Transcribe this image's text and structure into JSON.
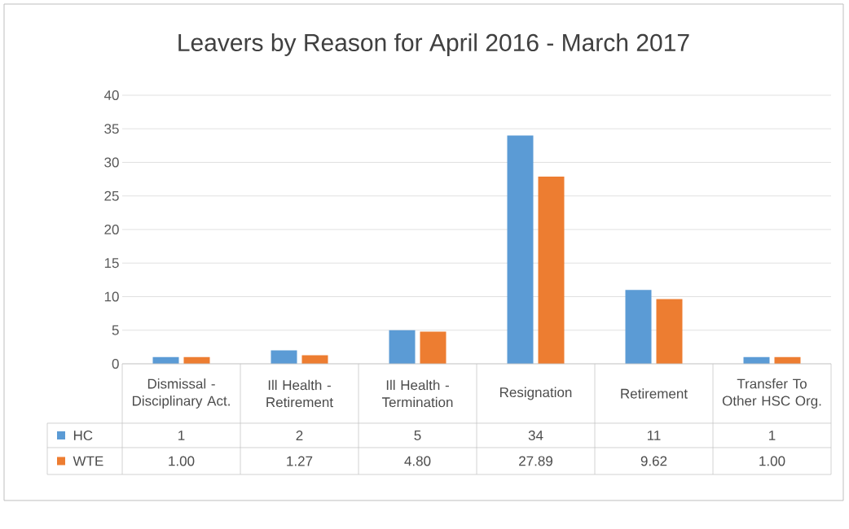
{
  "chart_data": {
    "type": "bar",
    "title": "Leavers by Reason for April 2016 - March 2017",
    "categories": [
      "Dismissal - Disciplinary Act.",
      "Ill Health - Retirement",
      "Ill Health - Termination",
      "Resignation",
      "Retirement",
      "Transfer To Other HSC Org."
    ],
    "series": [
      {
        "name": "HC",
        "color": "#5b9bd5",
        "values": [
          1,
          2,
          5,
          34,
          11,
          1
        ],
        "value_labels": [
          "1",
          "2",
          "5",
          "34",
          "11",
          "1"
        ]
      },
      {
        "name": "WTE",
        "color": "#ed7d31",
        "values": [
          1.0,
          1.27,
          4.8,
          27.89,
          9.62,
          1.0
        ],
        "value_labels": [
          "1.00",
          "1.27",
          "4.80",
          "27.89",
          "9.62",
          "1.00"
        ]
      }
    ],
    "ylim": [
      0,
      40
    ],
    "yticks": [
      0,
      5,
      10,
      15,
      20,
      25,
      30,
      35,
      40
    ],
    "grid": "y",
    "legend": "bottom"
  }
}
